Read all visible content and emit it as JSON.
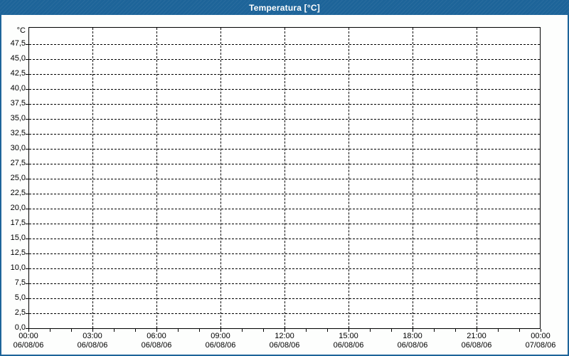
{
  "window": {
    "title": "Temperatura [°C]"
  },
  "colors": {
    "titlebar_bg": "#1d6499",
    "titlebar_text": "#ffffff",
    "window_border": "#1d6499",
    "plot_background": "#ffffff",
    "axis_line": "#000000",
    "grid_line": "#000000",
    "label_text": "#000000"
  },
  "chart_data": {
    "type": "line",
    "title": "Temperatura [°C]",
    "y_unit_label": "°C",
    "ylabel": "",
    "xlabel": "",
    "ylim": [
      0,
      50
    ],
    "y_tick_step": 2.5,
    "y_ticks": [
      "0,0",
      "2,5",
      "5,0",
      "7,5",
      "10,0",
      "12,5",
      "15,0",
      "17,5",
      "20,0",
      "22,5",
      "25,0",
      "27,5",
      "30,0",
      "32,5",
      "35,0",
      "37,5",
      "40,0",
      "42,5",
      "45,0",
      "47,5"
    ],
    "x_ticks": [
      {
        "time": "00:00",
        "date": "06/08/06"
      },
      {
        "time": "03:00",
        "date": "06/08/06"
      },
      {
        "time": "06:00",
        "date": "06/08/06"
      },
      {
        "time": "09:00",
        "date": "06/08/06"
      },
      {
        "time": "12:00",
        "date": "06/08/06"
      },
      {
        "time": "15:00",
        "date": "06/08/06"
      },
      {
        "time": "18:00",
        "date": "06/08/06"
      },
      {
        "time": "21:00",
        "date": "06/08/06"
      },
      {
        "time": "00:00",
        "date": "07/08/06"
      }
    ],
    "x_minor_ticks_per_hour": 1,
    "x_total_hours": 24,
    "grid": "dashed",
    "legend": "none",
    "series": []
  }
}
